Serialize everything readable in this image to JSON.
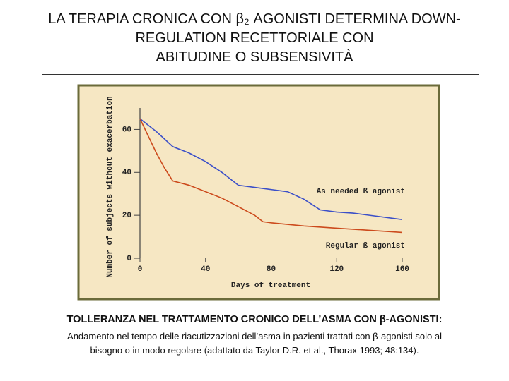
{
  "title_lines": [
    "LA TERAPIA CRONICA CON β₂ AGONISTI DETERMINA DOWN-",
    "REGULATION RECETTORIALE CON",
    "ABITUDINE O SUBSENSIVITÀ"
  ],
  "chart_data": {
    "type": "line",
    "xlabel": "Days of treatment",
    "ylabel": "Number of subjects without exacerbation",
    "xlim": [
      0,
      160
    ],
    "xticks": [
      0,
      40,
      80,
      120,
      160
    ],
    "ylim": [
      0,
      70
    ],
    "yticks": [
      0,
      20,
      40,
      60
    ],
    "background": "#f6e7c3",
    "frame_color": "#6b6b3a",
    "series": [
      {
        "name": "As needed ß agonist",
        "color": "#3b4fc8",
        "x": [
          0,
          10,
          20,
          30,
          40,
          50,
          60,
          70,
          80,
          90,
          100,
          110,
          120,
          130,
          140,
          160
        ],
        "values": [
          65,
          59,
          52,
          49,
          45,
          40,
          34,
          33,
          32,
          31,
          27.5,
          22.5,
          21.5,
          21,
          20,
          18
        ]
      },
      {
        "name": "Regular ß agonist",
        "color": "#cc4a1c",
        "x": [
          0,
          5,
          10,
          15,
          20,
          30,
          40,
          50,
          60,
          70,
          75,
          80,
          100,
          120,
          140,
          160
        ],
        "values": [
          65,
          57,
          49,
          42,
          36,
          34,
          31,
          28,
          24,
          20,
          17,
          16.5,
          15,
          14,
          13,
          12
        ]
      }
    ]
  },
  "caption_heading": "TOLLERANZA NEL TRATTAMENTO CRONICO DELL’ASMA CON β-AGONISTI:",
  "caption_lines": [
    "Andamento nel tempo delle riacutizzazioni dell’asma in pazienti trattati con β-agonisti solo al",
    "bisogno o in modo regolare (adattato da Taylor D.R. et al., Thorax 1993; 48:134)."
  ]
}
